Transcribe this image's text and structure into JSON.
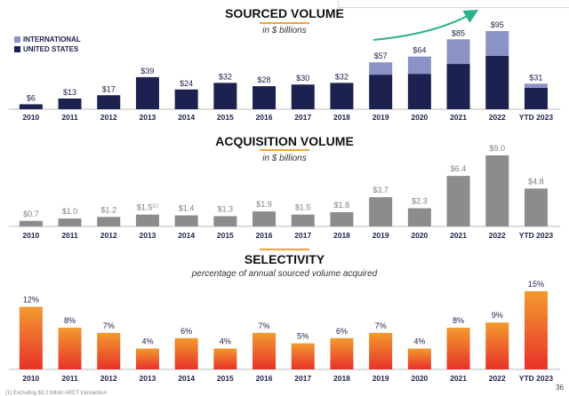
{
  "page_number": "36",
  "footnote": "(1) Excluding $3.2 billion ARCT transaction",
  "colors": {
    "united_states": "#1d2150",
    "international": "#8b93c6",
    "acquisition": "#8c8c8c",
    "selectivity_top": "#f29a2e",
    "selectivity_bottom": "#e8322a",
    "accent_underline": "#f2a33a",
    "arrow": "#2bb18c"
  },
  "chart_data": [
    {
      "id": "sourced",
      "type": "bar",
      "stacked": true,
      "title": "SOURCED VOLUME",
      "subtitle": "in $ billions",
      "categories": [
        "2010",
        "2011",
        "2012",
        "2013",
        "2014",
        "2015",
        "2016",
        "2017",
        "2018",
        "2019",
        "2020",
        "2021",
        "2022",
        "YTD 2023"
      ],
      "series": [
        {
          "name": "UNITED STATES",
          "values": [
            6,
            13,
            17,
            39,
            24,
            32,
            28,
            30,
            32,
            42,
            43,
            55,
            65,
            26
          ]
        },
        {
          "name": "INTERNATIONAL",
          "values": [
            0,
            0,
            0,
            0,
            0,
            0,
            0,
            0,
            0,
            15,
            21,
            30,
            30,
            5
          ]
        }
      ],
      "totals": [
        6,
        13,
        17,
        39,
        24,
        32,
        28,
        30,
        32,
        57,
        64,
        85,
        95,
        31
      ],
      "labels": [
        "$6",
        "$13",
        "$17",
        "$39",
        "$24",
        "$32",
        "$28",
        "$30",
        "$32",
        "$57",
        "$64",
        "$85",
        "$95",
        "$31"
      ],
      "legend": [
        "INTERNATIONAL",
        "UNITED STATES"
      ],
      "ylim": [
        0,
        100
      ]
    },
    {
      "id": "acquisition",
      "type": "bar",
      "title": "ACQUISITION VOLUME",
      "subtitle": "in $ billions",
      "categories": [
        "2010",
        "2011",
        "2012",
        "2013",
        "2014",
        "2015",
        "2016",
        "2017",
        "2018",
        "2019",
        "2020",
        "2021",
        "2022",
        "YTD 2023"
      ],
      "values": [
        0.7,
        1.0,
        1.2,
        1.5,
        1.4,
        1.3,
        1.9,
        1.5,
        1.8,
        3.7,
        2.3,
        6.4,
        9.0,
        4.8
      ],
      "labels": [
        "$0.7",
        "$1.0",
        "$1.2",
        "$1.5",
        "$1.4",
        "$1.3",
        "$1.9",
        "$1.5",
        "$1.8",
        "$3.7",
        "$2.3",
        "$6.4",
        "$9.0",
        "$4.8"
      ],
      "label_superscripts": [
        "",
        "",
        "",
        "(1)",
        "",
        "",
        "",
        "",
        "",
        "",
        "",
        "",
        "",
        ""
      ],
      "ylim": [
        0,
        9.5
      ]
    },
    {
      "id": "selectivity",
      "type": "bar",
      "title": "SELECTIVITY",
      "subtitle": "percentage of annual sourced volume acquired",
      "categories": [
        "2010",
        "2011",
        "2012",
        "2013",
        "2014",
        "2015",
        "2016",
        "2017",
        "2018",
        "2019",
        "2020",
        "2021",
        "2022",
        "YTD 2023"
      ],
      "values": [
        12,
        8,
        7,
        4,
        6,
        4,
        7,
        5,
        6,
        7,
        4,
        8,
        9,
        15
      ],
      "labels": [
        "12%",
        "8%",
        "7%",
        "4%",
        "6%",
        "4%",
        "7%",
        "5%",
        "6%",
        "7%",
        "4%",
        "8%",
        "9%",
        "15%"
      ],
      "ylim": [
        0,
        16
      ]
    }
  ]
}
